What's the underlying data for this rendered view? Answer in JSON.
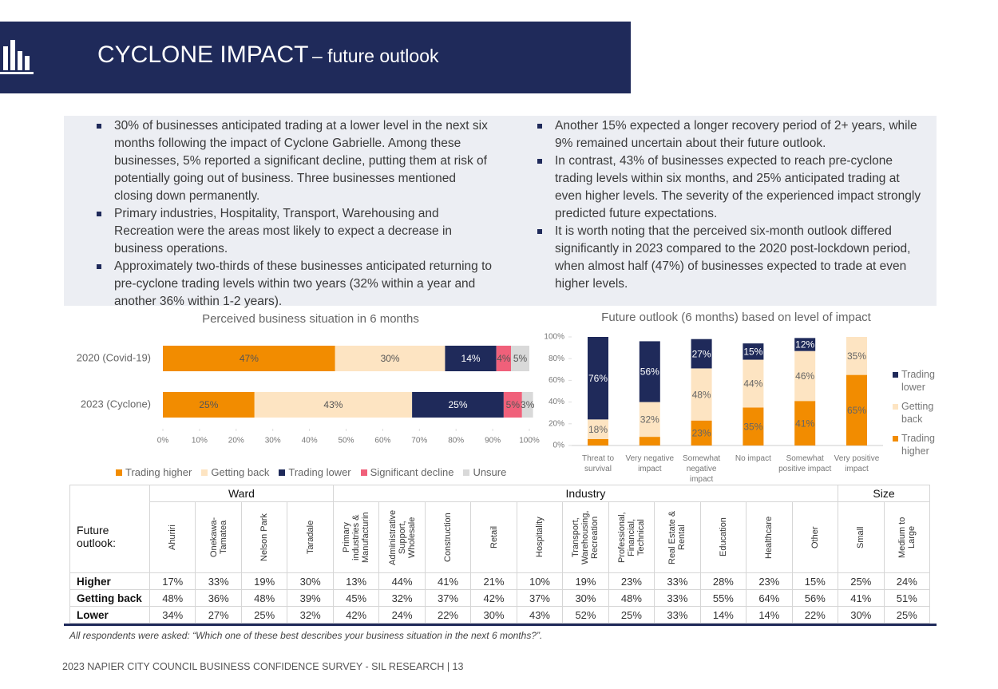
{
  "header": {
    "title": "CYCLONE IMPACT",
    "subtitle": "– future outlook"
  },
  "bullets": {
    "left": [
      "30% of businesses anticipated trading at a lower level in the next six months following the impact of Cyclone Gabrielle. Among these businesses, 5% reported a significant decline, putting them at risk of potentially going out of business. Three businesses mentioned closing down permanently.",
      "Primary industries, Hospitality, Transport, Warehousing and Recreation were the areas most likely to expect a decrease in business operations.",
      "Approximately two-thirds of these businesses anticipated returning to pre-cyclone trading levels within two years (32% within a year and another 36% within 1-2 years)."
    ],
    "right": [
      "Another 15% expected a longer recovery period of 2+ years, while 9% remained uncertain about their future outlook.",
      "In contrast, 43% of businesses expected to reach pre-cyclone trading levels within six months, and 25% anticipated trading at even higher levels. The severity of the experienced impact strongly predicted future expectations.",
      "It is worth noting that the perceived six-month outlook differed significantly in 2023 compared to the 2020 post-lockdown period, when almost half (47%) of businesses expected to trade at even higher levels."
    ]
  },
  "chart_data": [
    {
      "type": "hbar_stacked",
      "title": "Perceived business situation in 6 months",
      "categories": [
        "2020 (Covid-19)",
        "2023 (Cyclone)"
      ],
      "series": [
        {
          "name": "Trading higher",
          "color": "#f28c00",
          "values": [
            47,
            25
          ],
          "value_labels": [
            "47%",
            "25%"
          ]
        },
        {
          "name": "Getting back",
          "color": "#fde4c2",
          "values": [
            30,
            43
          ],
          "value_labels": [
            "30%",
            "43%"
          ]
        },
        {
          "name": "Trading lower",
          "color": "#1f2a5a",
          "values": [
            14,
            25
          ],
          "value_labels": [
            "14%",
            "25%"
          ]
        },
        {
          "name": "Significant decline",
          "color": "#f0607a",
          "values": [
            4,
            5
          ],
          "value_labels": [
            "4%",
            "5%"
          ]
        },
        {
          "name": "Unsure",
          "color": "#d9d9d9",
          "values": [
            5,
            3
          ],
          "value_labels": [
            "5%",
            "3%"
          ]
        }
      ],
      "xlim": [
        0,
        100
      ],
      "xticks": [
        {
          "value": 0,
          "label": "0%"
        },
        {
          "value": 10,
          "label": "10%"
        },
        {
          "value": 20,
          "label": "20%"
        },
        {
          "value": 30,
          "label": "30%"
        },
        {
          "value": 40,
          "label": "40%"
        },
        {
          "value": 50,
          "label": "50%"
        },
        {
          "value": 60,
          "label": "60%"
        },
        {
          "value": 70,
          "label": "70%"
        },
        {
          "value": 80,
          "label": "80%"
        },
        {
          "value": 90,
          "label": "90%"
        },
        {
          "value": 100,
          "label": "100%"
        }
      ],
      "legend": "bottom"
    },
    {
      "type": "vbar_stacked",
      "title": "Future outlook (6 months) based on level of impact",
      "categories": [
        "Threat to survival",
        "Very negative impact",
        "Somewhat negative impact",
        "No impact",
        "Somewhat positive impact",
        "Very positive impact"
      ],
      "series": [
        {
          "name": "Trading higher",
          "color": "#f28c00",
          "values": [
            6,
            8,
            23,
            35,
            41,
            65
          ],
          "value_labels": [
            null,
            null,
            "23%",
            "35%",
            "41%",
            "65%"
          ]
        },
        {
          "name": "Getting back",
          "color": "#fde4c2",
          "values": [
            18,
            32,
            48,
            44,
            46,
            35
          ],
          "value_labels": [
            "18%",
            "32%",
            "48%",
            "44%",
            "46%",
            "35%"
          ]
        },
        {
          "name": "Trading lower",
          "color": "#1f2a5a",
          "values": [
            76,
            56,
            27,
            15,
            12,
            null
          ],
          "value_labels": [
            "76%",
            "56%",
            "27%",
            "15%",
            "12%",
            null
          ]
        }
      ],
      "ylim": [
        0,
        100
      ],
      "yticks": [
        {
          "value": 0,
          "label": "0%"
        },
        {
          "value": 20,
          "label": "20%"
        },
        {
          "value": 40,
          "label": "40%"
        },
        {
          "value": 60,
          "label": "60%"
        },
        {
          "value": 80,
          "label": "80%"
        },
        {
          "value": 100,
          "label": "100%"
        }
      ],
      "legend": "right"
    }
  ],
  "table": {
    "corner": "Future outlook:",
    "groups": [
      {
        "name": "Ward",
        "span": 4
      },
      {
        "name": "Industry",
        "span": 11
      },
      {
        "name": "Size",
        "span": 2
      }
    ],
    "columns": [
      "Ahuriri",
      "Onekawa-Tamatea",
      "Nelson Park",
      "Taradale",
      "Primary industries & Manufacturin",
      "Administrative Support, Wholesale",
      "Construction",
      "Retail",
      "Hospitality",
      "Transport, Warehousing, Recreation",
      "Professional, Financial, Technical",
      "Real Estate & Rental",
      "Education",
      "Healthcare",
      "Other",
      "Small",
      "Medium to Large"
    ],
    "rows": [
      {
        "label": "Higher",
        "cells": [
          "17%",
          "33%",
          "19%",
          "30%",
          "13%",
          "44%",
          "41%",
          "21%",
          "10%",
          "19%",
          "23%",
          "33%",
          "28%",
          "23%",
          "15%",
          "25%",
          "24%"
        ]
      },
      {
        "label": "Getting back",
        "cells": [
          "48%",
          "36%",
          "48%",
          "39%",
          "45%",
          "32%",
          "37%",
          "42%",
          "37%",
          "30%",
          "48%",
          "33%",
          "55%",
          "64%",
          "56%",
          "41%",
          "51%"
        ]
      },
      {
        "label": "Lower",
        "cells": [
          "34%",
          "27%",
          "25%",
          "32%",
          "42%",
          "24%",
          "22%",
          "30%",
          "43%",
          "52%",
          "25%",
          "33%",
          "14%",
          "14%",
          "22%",
          "30%",
          "25%"
        ]
      }
    ]
  },
  "footnote": "All respondents were asked: “Which one of these best describes your business situation in the next 6 months?”.",
  "footer": "2023 NAPIER CITY COUNCIL BUSINESS CONFIDENCE SURVEY - SIL RESEARCH | 13"
}
